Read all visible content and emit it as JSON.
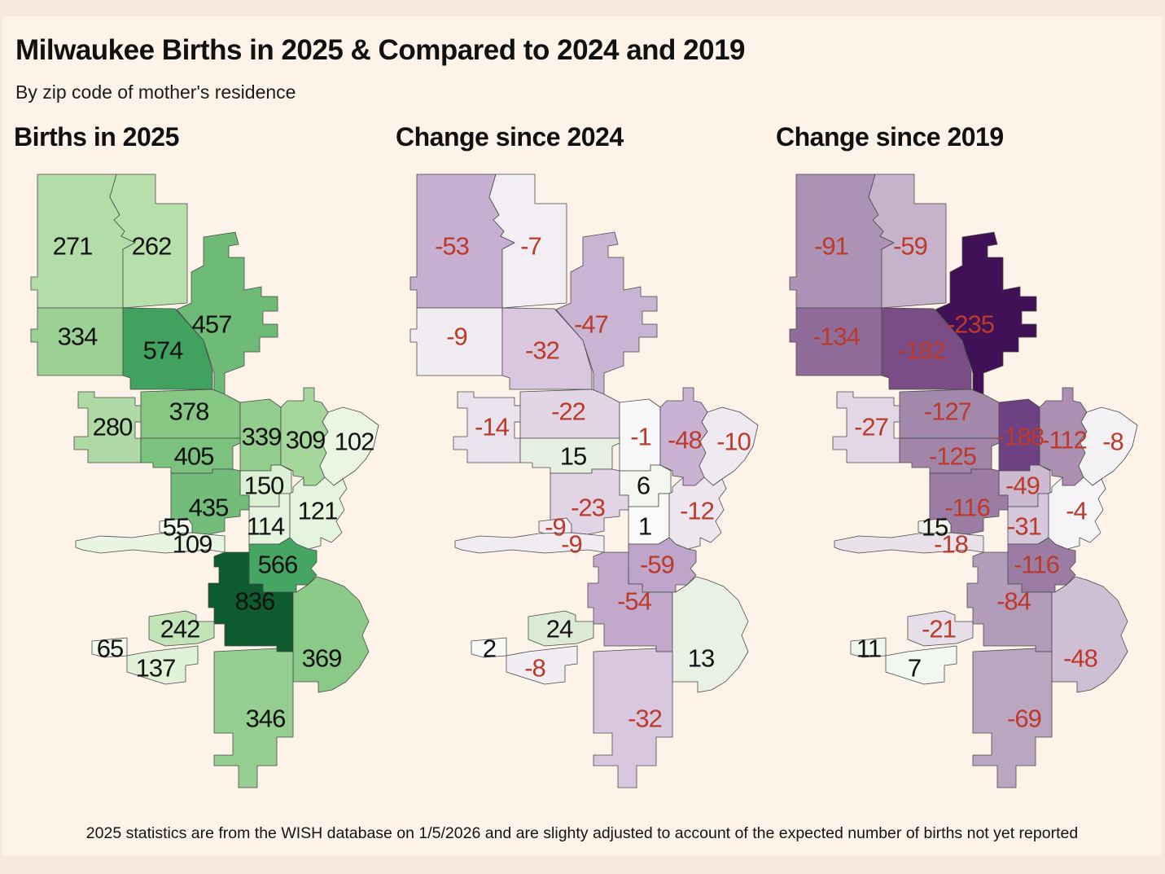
{
  "title": "Milwaukee Births in 2025 & Compared to 2024 and 2019",
  "subtitle": "By zip code of mother's residence",
  "footnote": "2025 statistics are from the WISH database on 1/5/2026 and are slighty adjusted to account of the expected number of births not yet reported",
  "colors": {
    "page_bg": "#f7e9db",
    "panel_bg": "#fdf3e8",
    "region_border": "#4a4a4a",
    "negative_label": "#bb3a2a",
    "positive_label": "#121212"
  },
  "chart_data": [
    {
      "type": "choropleth",
      "title": "Births in 2025",
      "palette": "sequential greens (darker = more births)",
      "legend": "none",
      "values": [
        271,
        262,
        457,
        334,
        574,
        378,
        280,
        339,
        309,
        102,
        405,
        150,
        435,
        55,
        109,
        114,
        121,
        566,
        836,
        242,
        65,
        137,
        369,
        346
      ],
      "fills": [
        "#b3dda8",
        "#b7dfac",
        "#6dbb76",
        "#9bd195",
        "#41a25f",
        "#86c783",
        "#afdaa5",
        "#93cd8e",
        "#a5d69c",
        "#eaf6e3",
        "#7cc27f",
        "#dcf0d4",
        "#73bd7a",
        "#f3faee",
        "#e8f5e1",
        "#e6f4df",
        "#e4f4dd",
        "#44a662",
        "#0e5b2f",
        "#c3e4b8",
        "#f1f9ec",
        "#e0f2d8",
        "#8ac987",
        "#95ce90"
      ]
    },
    {
      "type": "choropleth",
      "title": "Change since 2024",
      "palette": "diverging purple (decrease) to green (increase)",
      "legend": "none",
      "values": [
        -53,
        -7,
        -47,
        -9,
        -32,
        -22,
        -14,
        -1,
        -48,
        -10,
        15,
        6,
        -23,
        -9,
        -9,
        1,
        -12,
        -59,
        -54,
        24,
        2,
        -8,
        13,
        -32
      ],
      "fills": [
        "#c6afd0",
        "#f2eef3",
        "#cab4d3",
        "#f1ecf2",
        "#d8c7de",
        "#e1d5e6",
        "#eae2ed",
        "#f9f8f9",
        "#c9b2d2",
        "#efe9f1",
        "#e6f0e1",
        "#f3f7f0",
        "#e0d4e5",
        "#f1ecf2",
        "#f1ecf2",
        "#fafbf9",
        "#ede6ef",
        "#c0a5ca",
        "#c2a9cc",
        "#dcebd5",
        "#f9faf8",
        "#f1edf3",
        "#e9f1e5",
        "#d8c7de"
      ]
    },
    {
      "type": "choropleth",
      "title": "Change since 2019",
      "palette": "diverging purple (decrease) to green (increase)",
      "legend": "none",
      "values": [
        -91,
        -59,
        -235,
        -134,
        -182,
        -127,
        -27,
        -188,
        -112,
        -8,
        -125,
        -49,
        -116,
        15,
        -18,
        -31,
        -4,
        -116,
        -84,
        -21,
        11,
        7,
        -48,
        -69
      ],
      "fills": [
        "#ac92b4",
        "#c6b3cb",
        "#401157",
        "#8f6c9a",
        "#7a4d87",
        "#a288ab",
        "#e2d8e5",
        "#6e4182",
        "#ab90b2",
        "#f5f2f6",
        "#a186aa",
        "#cbbad0",
        "#9b7da4",
        "#eef4ea",
        "#e9e2eb",
        "#d5c8da",
        "#f6f4f7",
        "#9b7da4",
        "#b39bba",
        "#e6dee8",
        "#f0f5ed",
        "#f2f7ef",
        "#cfbfd4",
        "#bba6c1"
      ]
    }
  ]
}
